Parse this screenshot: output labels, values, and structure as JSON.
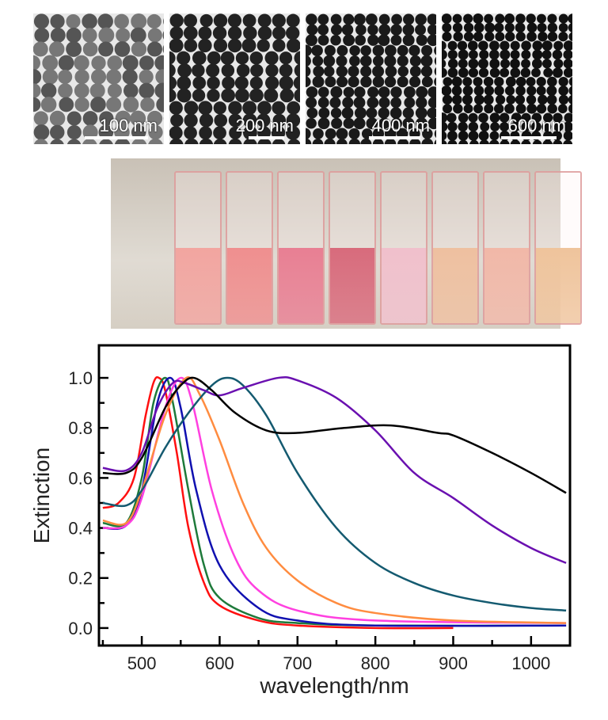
{
  "tem_panels": [
    {
      "scale_label": "100 nm",
      "shade": "#555"
    },
    {
      "scale_label": "200 nm",
      "shade": "#222"
    },
    {
      "scale_label": "400 nm",
      "shade": "#1a1a1a"
    },
    {
      "scale_label": "600 nm",
      "shade": "#111"
    }
  ],
  "cuvettes": [
    "#f2a5a0",
    "#ef8f8f",
    "#e87f93",
    "#d86b7c",
    "#f0c0cc",
    "#eec0a0",
    "#f1b8a8",
    "#efc49c"
  ],
  "chart_data": {
    "type": "line",
    "xlabel": "wavelength/nm",
    "ylabel": "Extinction",
    "xlim": [
      445,
      1050
    ],
    "ylim": [
      -0.07,
      1.13
    ],
    "xticks": [
      500,
      600,
      700,
      800,
      900,
      1000
    ],
    "xtick_labels": [
      "500",
      "600",
      "700",
      "800",
      "900",
      "1000"
    ],
    "yticks": [
      0,
      0.2,
      0.4,
      0.6,
      0.8,
      1.0
    ],
    "ytick_labels": [
      "0.0",
      "0.2",
      "0.4",
      "0.6",
      "0.8",
      "1.0"
    ],
    "grid": false,
    "series": [
      {
        "name": "red",
        "color": "#ff1010",
        "points": [
          [
            450,
            0.48
          ],
          [
            470,
            0.5
          ],
          [
            490,
            0.6
          ],
          [
            505,
            0.85
          ],
          [
            515,
            0.98
          ],
          [
            522,
            1.0
          ],
          [
            530,
            0.95
          ],
          [
            545,
            0.7
          ],
          [
            560,
            0.4
          ],
          [
            580,
            0.18
          ],
          [
            600,
            0.09
          ],
          [
            650,
            0.03
          ],
          [
            700,
            0.01
          ],
          [
            800,
            0.0
          ],
          [
            900,
            0.0
          ]
        ]
      },
      {
        "name": "green",
        "color": "#1e7a3a",
        "points": [
          [
            450,
            0.42
          ],
          [
            480,
            0.42
          ],
          [
            500,
            0.6
          ],
          [
            515,
            0.9
          ],
          [
            530,
            1.0
          ],
          [
            540,
            0.9
          ],
          [
            560,
            0.55
          ],
          [
            580,
            0.25
          ],
          [
            600,
            0.12
          ],
          [
            650,
            0.04
          ],
          [
            700,
            0.02
          ],
          [
            800,
            0.01
          ],
          [
            1045,
            0.01
          ]
        ]
      },
      {
        "name": "blue",
        "color": "#1010b0",
        "points": [
          [
            450,
            0.4
          ],
          [
            480,
            0.41
          ],
          [
            500,
            0.55
          ],
          [
            520,
            0.9
          ],
          [
            537,
            1.0
          ],
          [
            550,
            0.88
          ],
          [
            570,
            0.55
          ],
          [
            600,
            0.25
          ],
          [
            650,
            0.08
          ],
          [
            700,
            0.03
          ],
          [
            800,
            0.01
          ],
          [
            1045,
            0.01
          ]
        ]
      },
      {
        "name": "magenta",
        "color": "#ff40e0",
        "points": [
          [
            450,
            0.4
          ],
          [
            480,
            0.41
          ],
          [
            500,
            0.52
          ],
          [
            530,
            0.88
          ],
          [
            550,
            1.0
          ],
          [
            565,
            0.9
          ],
          [
            590,
            0.55
          ],
          [
            620,
            0.28
          ],
          [
            650,
            0.15
          ],
          [
            700,
            0.07
          ],
          [
            800,
            0.03
          ],
          [
            1045,
            0.02
          ]
        ]
      },
      {
        "name": "orange",
        "color": "#ff8c40",
        "points": [
          [
            450,
            0.43
          ],
          [
            480,
            0.42
          ],
          [
            500,
            0.55
          ],
          [
            530,
            0.85
          ],
          [
            557,
            1.0
          ],
          [
            575,
            0.93
          ],
          [
            600,
            0.75
          ],
          [
            630,
            0.5
          ],
          [
            660,
            0.32
          ],
          [
            700,
            0.19
          ],
          [
            750,
            0.1
          ],
          [
            800,
            0.06
          ],
          [
            900,
            0.03
          ],
          [
            1045,
            0.02
          ]
        ]
      },
      {
        "name": "teal",
        "color": "#145a70",
        "points": [
          [
            450,
            0.5
          ],
          [
            480,
            0.49
          ],
          [
            500,
            0.55
          ],
          [
            530,
            0.72
          ],
          [
            560,
            0.86
          ],
          [
            590,
            0.97
          ],
          [
            610,
            1.0
          ],
          [
            630,
            0.97
          ],
          [
            660,
            0.85
          ],
          [
            700,
            0.62
          ],
          [
            750,
            0.4
          ],
          [
            800,
            0.26
          ],
          [
            850,
            0.18
          ],
          [
            900,
            0.13
          ],
          [
            950,
            0.1
          ],
          [
            1000,
            0.08
          ],
          [
            1045,
            0.07
          ]
        ]
      },
      {
        "name": "purple",
        "color": "#6a10b0",
        "points": [
          [
            450,
            0.64
          ],
          [
            480,
            0.63
          ],
          [
            500,
            0.7
          ],
          [
            520,
            0.88
          ],
          [
            540,
            0.98
          ],
          [
            555,
            0.98
          ],
          [
            580,
            0.95
          ],
          [
            600,
            0.93
          ],
          [
            630,
            0.96
          ],
          [
            675,
            1.0
          ],
          [
            700,
            0.99
          ],
          [
            750,
            0.92
          ],
          [
            800,
            0.79
          ],
          [
            850,
            0.62
          ],
          [
            900,
            0.52
          ],
          [
            950,
            0.41
          ],
          [
            1000,
            0.32
          ],
          [
            1045,
            0.26
          ]
        ]
      },
      {
        "name": "black",
        "color": "#000000",
        "points": [
          [
            450,
            0.62
          ],
          [
            480,
            0.62
          ],
          [
            500,
            0.68
          ],
          [
            530,
            0.88
          ],
          [
            550,
            0.97
          ],
          [
            567,
            1.0
          ],
          [
            590,
            0.95
          ],
          [
            620,
            0.86
          ],
          [
            660,
            0.79
          ],
          [
            700,
            0.78
          ],
          [
            760,
            0.8
          ],
          [
            820,
            0.81
          ],
          [
            880,
            0.78
          ],
          [
            900,
            0.77
          ],
          [
            950,
            0.7
          ],
          [
            1000,
            0.62
          ],
          [
            1045,
            0.54
          ]
        ]
      }
    ]
  }
}
